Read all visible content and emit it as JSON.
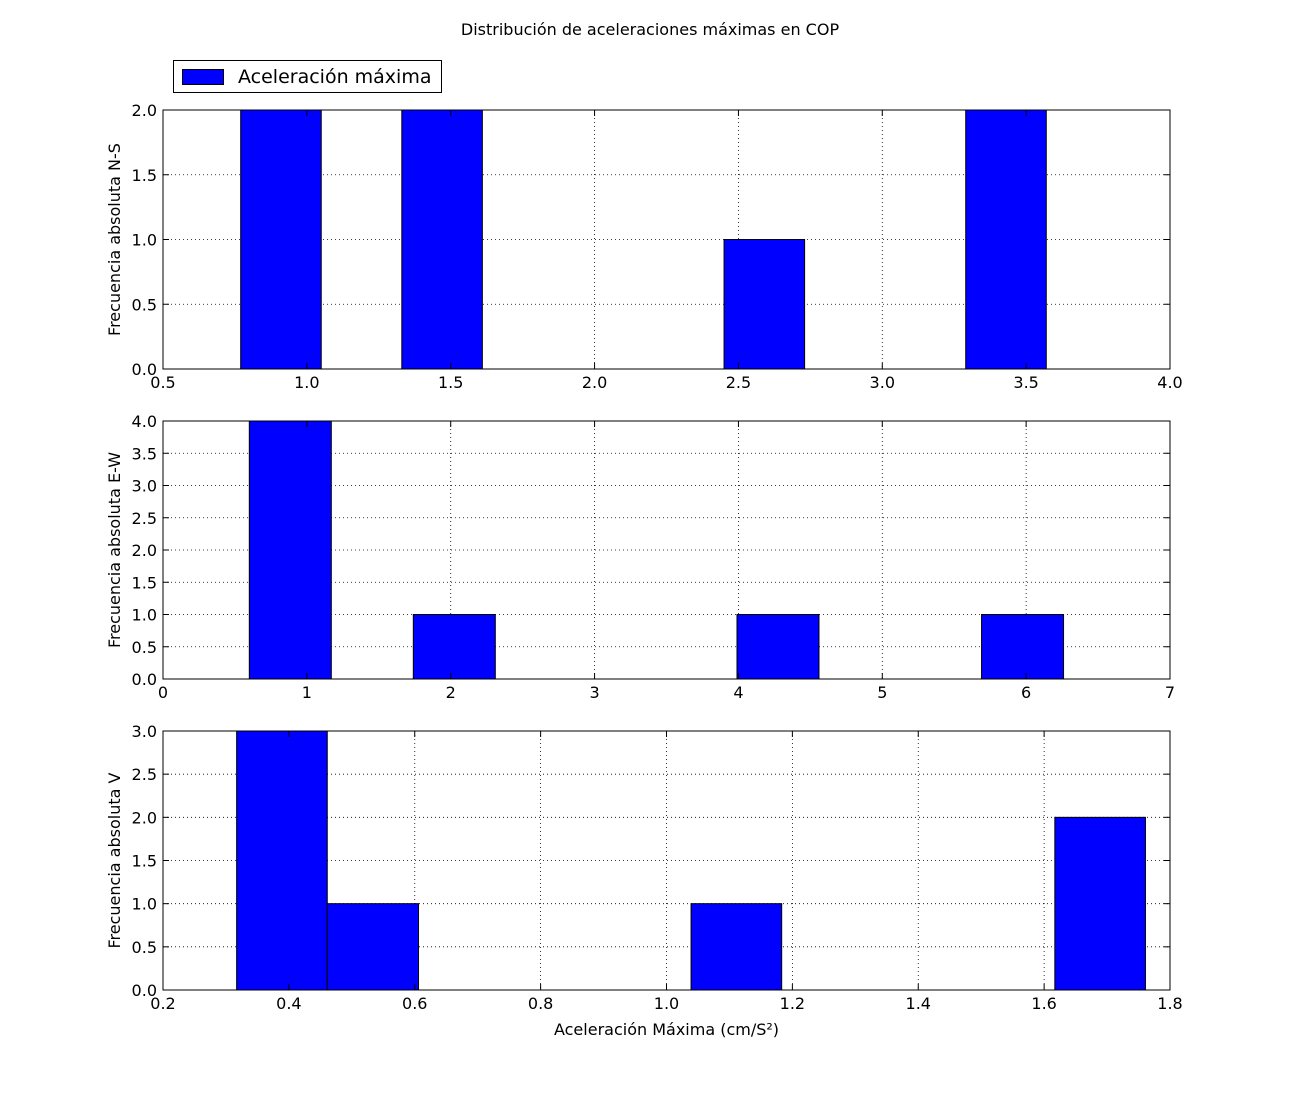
{
  "figure_title": "Distribución de aceleraciones máximas en COP",
  "legend": {
    "label": "Aceleración máxima",
    "color": "#0000ff"
  },
  "chart_data": [
    {
      "type": "bar",
      "ylabel": "Frecuencia absoluta N-S",
      "xlabel": "",
      "xlim": [
        0.5,
        4.0
      ],
      "ylim": [
        0.0,
        2.0
      ],
      "xticks": [
        "0.5",
        "1.0",
        "1.5",
        "2.0",
        "2.5",
        "3.0",
        "3.5",
        "4.0"
      ],
      "yticks": [
        "0.0",
        "0.5",
        "1.0",
        "1.5",
        "2.0"
      ],
      "grid": true,
      "color": "#0000ff",
      "bars": [
        {
          "x0": 0.77,
          "x1": 1.05,
          "value": 2
        },
        {
          "x0": 1.33,
          "x1": 1.61,
          "value": 2
        },
        {
          "x0": 2.45,
          "x1": 2.73,
          "value": 1
        },
        {
          "x0": 3.29,
          "x1": 3.57,
          "value": 2
        }
      ]
    },
    {
      "type": "bar",
      "ylabel": "Frecuencia absoluta E-W",
      "xlabel": "",
      "xlim": [
        0,
        7
      ],
      "ylim": [
        0.0,
        4.0
      ],
      "xticks": [
        "0",
        "1",
        "2",
        "3",
        "4",
        "5",
        "6",
        "7"
      ],
      "yticks": [
        "0.0",
        "0.5",
        "1.0",
        "1.5",
        "2.0",
        "2.5",
        "3.0",
        "3.5",
        "4.0"
      ],
      "grid": true,
      "color": "#0000ff",
      "bars": [
        {
          "x0": 0.6,
          "x1": 1.17,
          "value": 4
        },
        {
          "x0": 1.74,
          "x1": 2.31,
          "value": 1
        },
        {
          "x0": 3.99,
          "x1": 4.56,
          "value": 1
        },
        {
          "x0": 5.69,
          "x1": 6.26,
          "value": 1
        }
      ]
    },
    {
      "type": "bar",
      "ylabel": "Frecuencia absoluta V",
      "xlabel": "Aceleración Máxima (cm/S²)",
      "xlim": [
        0.2,
        1.8
      ],
      "ylim": [
        0.0,
        3.0
      ],
      "xticks": [
        "0.2",
        "0.4",
        "0.6",
        "0.8",
        "1.0",
        "1.2",
        "1.4",
        "1.6",
        "1.8"
      ],
      "yticks": [
        "0.0",
        "0.5",
        "1.0",
        "1.5",
        "2.0",
        "2.5",
        "3.0"
      ],
      "grid": true,
      "color": "#0000ff",
      "bars": [
        {
          "x0": 0.317,
          "x1": 0.461,
          "value": 3
        },
        {
          "x0": 0.461,
          "x1": 0.606,
          "value": 1
        },
        {
          "x0": 1.039,
          "x1": 1.183,
          "value": 1
        },
        {
          "x0": 1.617,
          "x1": 1.761,
          "value": 2
        }
      ]
    }
  ]
}
